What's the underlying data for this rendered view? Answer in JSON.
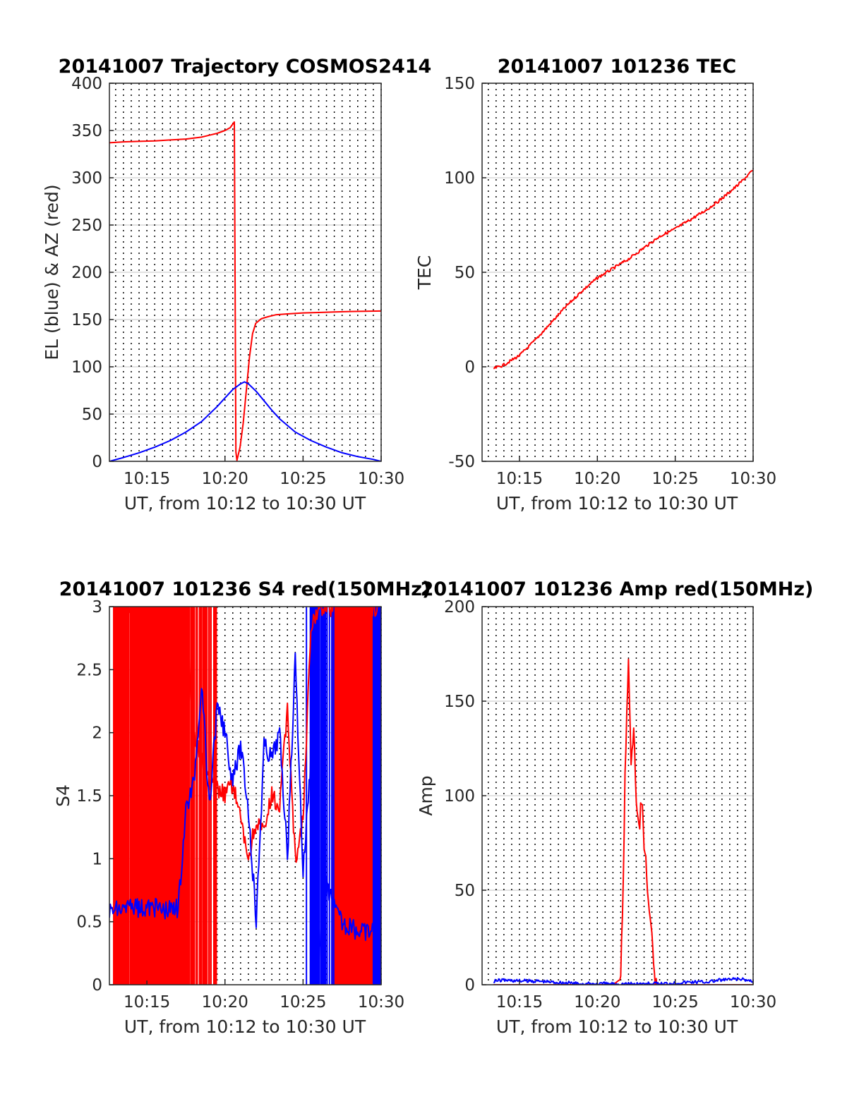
{
  "figure": {
    "colors": {
      "el": "#0000ff",
      "az": "#ff0000",
      "grid": "#d9d9d9",
      "axis": "#262626"
    }
  },
  "chart_data": [
    {
      "id": "trajectory",
      "type": "line",
      "title": "20141007 Trajectory COSMOS2414",
      "xlabel": "UT, from 10:12 to 10:30 UT",
      "ylabel": "EL (blue) & AZ (red)",
      "xlim": [
        "10:12:36",
        "10:30:00"
      ],
      "ylim": [
        0,
        400
      ],
      "x_ticks": [
        "10:15",
        "10:20",
        "10:25",
        "10:30"
      ],
      "y_ticks": [
        0,
        50,
        100,
        150,
        200,
        250,
        300,
        350,
        400
      ],
      "grid": {
        "x": "dotted every 30 s",
        "y": "solid"
      },
      "series": [
        {
          "color": "#ff0000",
          "x": [
            "10:12:36",
            "10:13:30",
            "10:14:30",
            "10:15:30",
            "10:16:30",
            "10:17:30",
            "10:18:30",
            "10:19:00",
            "10:19:30",
            "10:20:00",
            "10:20:20",
            "10:20:36",
            "10:20:42",
            "10:20:46",
            "10:20:58",
            "10:21:10",
            "10:21:22",
            "10:21:34",
            "10:21:46",
            "10:21:58",
            "10:22:20",
            "10:22:45",
            "10:23:15",
            "10:24:00",
            "10:25:00",
            "10:26:00",
            "10:27:00",
            "10:28:00",
            "10:29:00",
            "10:30:00"
          ],
          "y": [
            337,
            338,
            338.5,
            339,
            340,
            341,
            343,
            345,
            347,
            350,
            353,
            359,
            10,
            1,
            15,
            40,
            75,
            110,
            135,
            146,
            151,
            153,
            155,
            156,
            157,
            157.5,
            158,
            158.5,
            158.8,
            159
          ]
        },
        {
          "color": "#0000ff",
          "x": [
            "10:12:36",
            "10:13:30",
            "10:14:30",
            "10:15:30",
            "10:16:30",
            "10:17:30",
            "10:18:30",
            "10:19:30",
            "10:20:00",
            "10:20:30",
            "10:21:00",
            "10:21:15",
            "10:21:30",
            "10:22:00",
            "10:22:30",
            "10:23:00",
            "10:23:30",
            "10:24:00",
            "10:24:30",
            "10:25:30",
            "10:26:30",
            "10:27:30",
            "10:28:30",
            "10:29:30",
            "10:30:00"
          ],
          "y": [
            0,
            4,
            9,
            15,
            22,
            31,
            42,
            58,
            67,
            76,
            82,
            84,
            82,
            74,
            64,
            54,
            45,
            38,
            31,
            22,
            15,
            9,
            5,
            2,
            0
          ]
        }
      ]
    },
    {
      "id": "tec",
      "type": "line",
      "title": "20141007 101236 TEC",
      "xlabel": "UT, from 10:12 to 10:30 UT",
      "ylabel": "TEC",
      "xlim": [
        "10:12:36",
        "10:30:00"
      ],
      "ylim": [
        -50,
        150
      ],
      "x_ticks": [
        "10:15",
        "10:20",
        "10:25",
        "10:30"
      ],
      "y_ticks": [
        -50,
        0,
        50,
        100,
        150
      ],
      "grid": {
        "x": "dotted every 30 s",
        "y": "solid"
      },
      "series": [
        {
          "color": "#ff0000",
          "x": [
            "10:13:20",
            "10:14:00",
            "10:15:00",
            "10:16:00",
            "10:17:00",
            "10:18:00",
            "10:19:00",
            "10:20:00",
            "10:21:00",
            "10:22:00",
            "10:23:00",
            "10:24:00",
            "10:25:00",
            "10:26:00",
            "10:27:00",
            "10:28:00",
            "10:29:00",
            "10:30:00"
          ],
          "y": [
            -1,
            1,
            6,
            14,
            23,
            32,
            40,
            47,
            52,
            57,
            63,
            69,
            73,
            78,
            83,
            89,
            96,
            104
          ]
        }
      ]
    },
    {
      "id": "s4",
      "type": "line",
      "title": "20141007 101236 S4 red(150MHz)",
      "xlabel": "UT, from 10:12 to 10:30 UT",
      "ylabel": "S4",
      "xlim": [
        "10:12:36",
        "10:30:00"
      ],
      "ylim": [
        0,
        3
      ],
      "x_ticks": [
        "10:15",
        "10:20",
        "10:25",
        "10:30"
      ],
      "y_ticks": [
        0,
        0.5,
        1,
        1.5,
        2,
        2.5,
        3
      ],
      "grid": {
        "x": "dotted every 30 s",
        "y": "solid"
      },
      "series": [
        {
          "color": "#ff0000",
          "x": [
            "10:12:50",
            "10:17:30",
            "10:18:00",
            "10:19:00",
            "10:20:00",
            "10:20:30",
            "10:21:00",
            "10:21:30",
            "10:22:00",
            "10:22:30",
            "10:23:00",
            "10:23:30",
            "10:24:00",
            "10:24:30",
            "10:25:00",
            "10:25:30",
            "10:26:00",
            "10:27:00",
            "10:28:00",
            "10:29:00",
            "10:29:50"
          ],
          "y": [
            3,
            3,
            2.0,
            1.6,
            1.5,
            1.6,
            1.3,
            1.0,
            1.3,
            1.2,
            1.5,
            1.4,
            2.2,
            1.0,
            1.3,
            2.8,
            3,
            3,
            3,
            3,
            3
          ]
        },
        {
          "color": "#0000ff",
          "x": [
            "10:12:36",
            "10:13:00",
            "10:14:00",
            "10:15:00",
            "10:16:00",
            "10:17:00",
            "10:17:30",
            "10:18:00",
            "10:18:30",
            "10:19:00",
            "10:19:30",
            "10:20:00",
            "10:20:30",
            "10:21:00",
            "10:21:30",
            "10:22:00",
            "10:22:30",
            "10:23:00",
            "10:23:30",
            "10:24:00",
            "10:24:30",
            "10:25:00",
            "10:25:30",
            "10:26:00",
            "10:26:30",
            "10:27:00",
            "10:27:30",
            "10:28:00",
            "10:29:00",
            "10:29:50"
          ],
          "y": [
            0.58,
            0.6,
            0.6,
            0.62,
            0.6,
            0.6,
            1.4,
            1.6,
            2.4,
            1.4,
            2.2,
            2.0,
            1.6,
            1.9,
            1.4,
            0.5,
            1.9,
            1.8,
            2.0,
            1.0,
            2.6,
            0.9,
            1.8,
            0.2,
            0.8,
            0.6,
            0.5,
            0.45,
            0.42,
            0.45
          ]
        }
      ]
    },
    {
      "id": "amp",
      "type": "line",
      "title": "20141007 101236 Amp red(150MHz)",
      "xlabel": "UT, from 10:12 to 10:30 UT",
      "ylabel": "Amp",
      "xlim": [
        "10:12:36",
        "10:30:00"
      ],
      "ylim": [
        0,
        200
      ],
      "x_ticks": [
        "10:15",
        "10:20",
        "10:25",
        "10:30"
      ],
      "y_ticks": [
        0,
        50,
        100,
        150,
        200
      ],
      "grid": {
        "x": "dotted every 30 s",
        "y": "solid"
      },
      "series": [
        {
          "color": "#ff0000",
          "x": [
            "10:13:20",
            "10:20:00",
            "10:21:00",
            "10:21:30",
            "10:21:40",
            "10:21:50",
            "10:22:00",
            "10:22:10",
            "10:22:20",
            "10:22:30",
            "10:22:40",
            "10:22:50",
            "10:23:00",
            "10:23:10",
            "10:23:20",
            "10:23:30",
            "10:23:40",
            "10:24:00",
            "10:30:00"
          ],
          "y": [
            0,
            0,
            0,
            3,
            60,
            130,
            168,
            120,
            135,
            95,
            80,
            100,
            70,
            60,
            40,
            25,
            3,
            0,
            0
          ]
        },
        {
          "color": "#0000ff",
          "x": [
            "10:13:20",
            "10:14:00",
            "10:15:00",
            "10:16:00",
            "10:17:00",
            "10:18:00",
            "10:19:00",
            "10:20:00",
            "10:21:00",
            "10:22:00",
            "10:23:00",
            "10:24:00",
            "10:25:00",
            "10:26:00",
            "10:27:00",
            "10:28:00",
            "10:29:00",
            "10:30:00"
          ],
          "y": [
            2,
            2.5,
            2,
            2,
            1.5,
            1,
            0.5,
            0.5,
            0.5,
            0.5,
            0.5,
            0.5,
            1,
            1.5,
            1.5,
            2.5,
            3,
            2
          ]
        }
      ]
    }
  ]
}
